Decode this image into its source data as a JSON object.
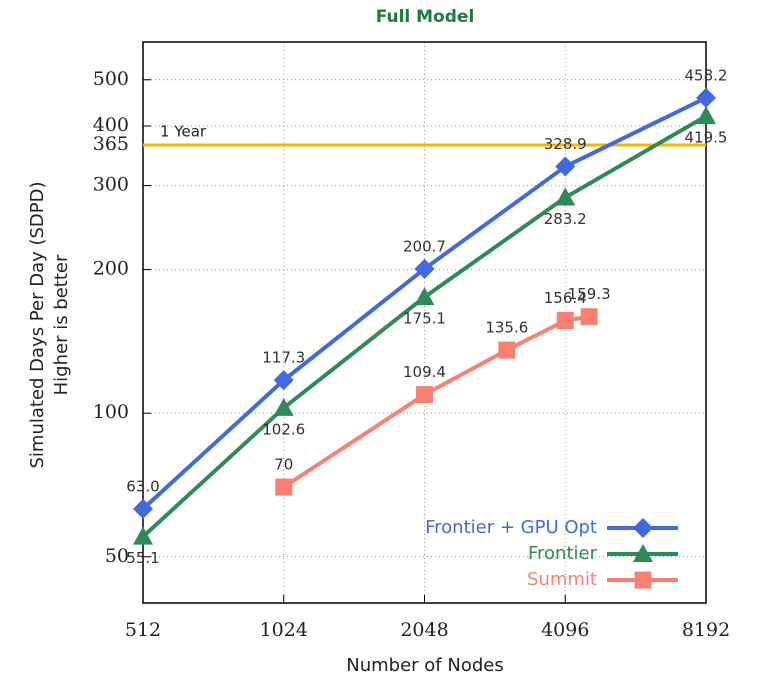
{
  "chart_data": {
    "type": "line",
    "title": "Full Model",
    "xlabel": "Number of Nodes",
    "ylabel": [
      "Simulated Days Per Day (SDPD)",
      "Higher is better"
    ],
    "xlog": true,
    "ylog": true,
    "xlim": [
      512,
      8192
    ],
    "ylim": [
      40,
      600
    ],
    "xticks": [
      512,
      1024,
      2048,
      4096,
      8192
    ],
    "yticks": [
      50,
      100,
      200,
      300,
      365,
      400,
      500
    ],
    "grid": true,
    "legend": "bottom right",
    "hline": {
      "value": 365,
      "label": "1 Year",
      "color": "#f5b800"
    },
    "series": [
      {
        "name": "Frontier + GPU Opt",
        "color": "#4169e1",
        "marker": "diamond",
        "x": [
          512,
          1024,
          2048,
          4096,
          8192
        ],
        "values": [
          63.0,
          117.3,
          200.7,
          328.9,
          458.2
        ],
        "value_labels": [
          "63.0",
          "117.3",
          "200.7",
          "328.9",
          "458.2"
        ]
      },
      {
        "name": "Frontier",
        "color": "#2e8b57",
        "marker": "triangle",
        "x": [
          512,
          1024,
          2048,
          4096,
          8192
        ],
        "values": [
          55.1,
          102.6,
          175.1,
          283.2,
          419.5
        ],
        "value_labels": [
          "55.1",
          "102.6",
          "175.1",
          "283.2",
          "419.5"
        ]
      },
      {
        "name": "Summit",
        "color": "#fa8072",
        "marker": "square",
        "x": [
          1024,
          2048,
          3072,
          4096,
          4608
        ],
        "values": [
          70,
          109.4,
          135.6,
          156.4,
          159.3
        ],
        "value_labels": [
          "70",
          "109.4",
          "135.6",
          "156.4",
          "159.3"
        ]
      }
    ]
  }
}
